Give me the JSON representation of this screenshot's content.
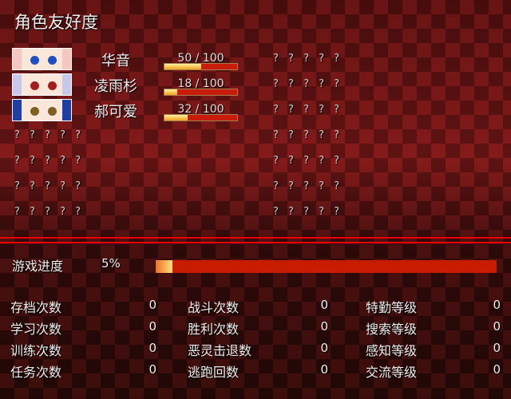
{
  "title": "角色友好度",
  "characters": [
    {
      "name": "华音",
      "value": 50,
      "max": 100,
      "text": "50 / 100",
      "hint": "? ? ? ? ?",
      "eye_color": "#2050c0",
      "hair": "#f4c8c0"
    },
    {
      "name": "凌雨杉",
      "value": 18,
      "max": 100,
      "text": "18 / 100",
      "hint": "? ? ? ? ?",
      "eye_color": "#a02020",
      "hair": "#c8c8e8"
    },
    {
      "name": "郝可爱",
      "value": 32,
      "max": 100,
      "text": "32 / 100",
      "hint": "? ? ? ? ?",
      "eye_color": "#806020",
      "hair": "#2040a0"
    }
  ],
  "locked_left": [
    "? ? ? ? ?",
    "? ? ? ? ?",
    "? ? ? ? ?",
    "? ? ? ? ?"
  ],
  "locked_right": [
    "? ? ? ? ?",
    "? ? ? ? ?",
    "? ? ? ? ?",
    "? ? ? ? ?"
  ],
  "progress": {
    "label": "游戏进度",
    "text": "5%",
    "percent": 5
  },
  "stats": [
    [
      {
        "label": "存档次数",
        "value": "0"
      },
      {
        "label": "学习次数",
        "value": "0"
      },
      {
        "label": "训练次数",
        "value": "0"
      },
      {
        "label": "任务次数",
        "value": "0"
      }
    ],
    [
      {
        "label": "战斗次数",
        "value": "0"
      },
      {
        "label": "胜利次数",
        "value": "0"
      },
      {
        "label": "恶灵击退数",
        "value": "0"
      },
      {
        "label": "逃跑回数",
        "value": "0"
      }
    ],
    [
      {
        "label": "特勤等级",
        "value": "0"
      },
      {
        "label": "搜索等级",
        "value": "0"
      },
      {
        "label": "感知等级",
        "value": "0"
      },
      {
        "label": "交流等级",
        "value": "0"
      }
    ]
  ]
}
